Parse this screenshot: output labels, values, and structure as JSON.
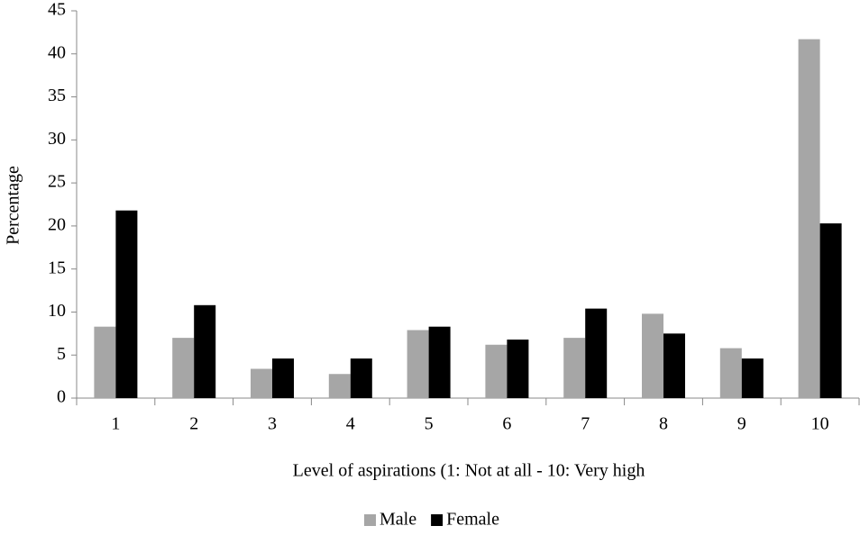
{
  "chart_data": {
    "type": "bar",
    "x_label": "Level of aspirations (1: Not at all - 10: Very high",
    "y_label": "Percentage",
    "categories": [
      "1",
      "2",
      "3",
      "4",
      "5",
      "6",
      "7",
      "8",
      "9",
      "10"
    ],
    "series": [
      {
        "name": "Male",
        "color": "#a6a6a6",
        "values": [
          8.3,
          7.0,
          3.4,
          2.8,
          7.9,
          6.2,
          7.0,
          9.8,
          5.8,
          41.7
        ]
      },
      {
        "name": "Female",
        "color": "#000000",
        "values": [
          21.8,
          10.8,
          4.6,
          4.6,
          8.3,
          6.8,
          10.4,
          7.5,
          4.6,
          20.3
        ]
      }
    ],
    "ylim": [
      0,
      45
    ],
    "yticks": [
      0,
      5,
      10,
      15,
      20,
      25,
      30,
      35,
      40,
      45
    ],
    "grid": false,
    "legend": "bottom"
  }
}
